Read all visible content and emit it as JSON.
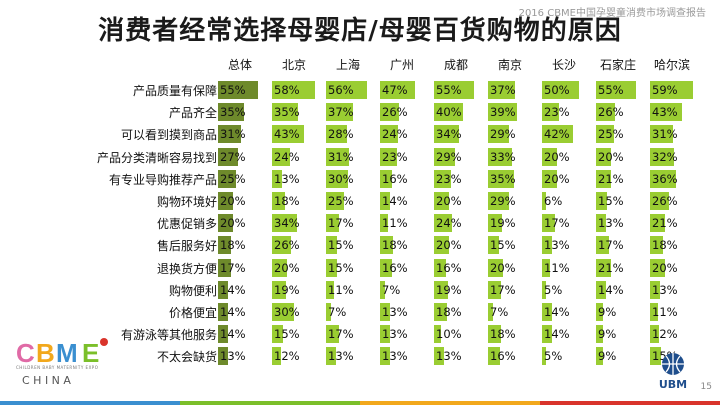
{
  "header_note": "2016 CBME中国孕婴童消费市场调查报告",
  "title": "消费者经常选择母婴店/母婴百货购物的原因",
  "page_number": "15",
  "logos": {
    "left_brand": "CBME",
    "left_sub": "CHILDREN BABY MATERNITY EXPO",
    "left_country": "C H I N A",
    "right_brand": "UBM"
  },
  "colors": {
    "bar_dark": "#6e8a2b",
    "bar_light": "#9acd32",
    "band": [
      "#3a8fd0",
      "#7bbf2a",
      "#f2a81c",
      "#d9342b"
    ]
  },
  "chart_data": {
    "type": "table",
    "title": "消费者经常选择母婴店/母婴百货购物的原因",
    "columns": [
      "总体",
      "北京",
      "上海",
      "广州",
      "成都",
      "南京",
      "长沙",
      "石家庄",
      "哈尔滨"
    ],
    "rows": [
      {
        "label": "产品质量有保障",
        "values": [
          55,
          58,
          56,
          47,
          55,
          37,
          50,
          55,
          59
        ]
      },
      {
        "label": "产品齐全",
        "values": [
          35,
          35,
          37,
          26,
          40,
          39,
          23,
          26,
          43
        ]
      },
      {
        "label": "可以看到摸到商品",
        "values": [
          31,
          43,
          28,
          24,
          34,
          29,
          42,
          25,
          31
        ]
      },
      {
        "label": "产品分类清晰容易找到",
        "values": [
          27,
          24,
          31,
          23,
          29,
          33,
          20,
          20,
          32
        ]
      },
      {
        "label": "有专业导购推荐产品",
        "values": [
          25,
          13,
          30,
          16,
          23,
          35,
          20,
          21,
          36
        ]
      },
      {
        "label": "购物环境好",
        "values": [
          20,
          18,
          25,
          14,
          20,
          29,
          6,
          15,
          26
        ]
      },
      {
        "label": "优惠促销多",
        "values": [
          20,
          34,
          17,
          11,
          24,
          19,
          17,
          13,
          21
        ]
      },
      {
        "label": "售后服务好",
        "values": [
          18,
          26,
          15,
          18,
          20,
          15,
          13,
          17,
          18
        ]
      },
      {
        "label": "退换货方便",
        "values": [
          17,
          20,
          15,
          16,
          16,
          20,
          11,
          21,
          20
        ]
      },
      {
        "label": "购物便利",
        "values": [
          14,
          19,
          11,
          7,
          19,
          17,
          5,
          14,
          13
        ]
      },
      {
        "label": "价格便宜",
        "values": [
          14,
          30,
          7,
          13,
          18,
          7,
          14,
          9,
          11
        ]
      },
      {
        "label": "有游泳等其他服务",
        "values": [
          14,
          15,
          17,
          13,
          10,
          18,
          14,
          9,
          12
        ]
      },
      {
        "label": "不太会缺货",
        "values": [
          13,
          12,
          13,
          13,
          13,
          16,
          5,
          9,
          15
        ]
      }
    ],
    "unit": "%",
    "value_range": [
      0,
      60
    ]
  }
}
